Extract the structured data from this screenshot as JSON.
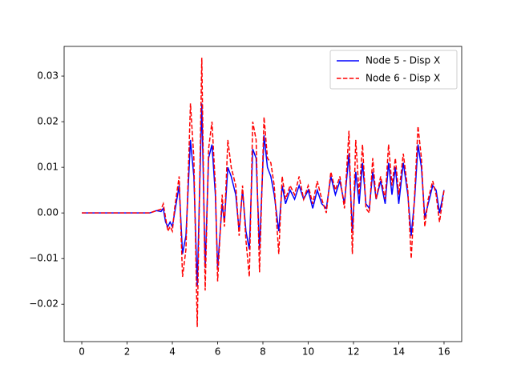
{
  "chart_data": {
    "type": "line",
    "x": [
      0,
      3.0,
      3.3,
      3.5,
      3.6,
      3.7,
      3.8,
      3.9,
      4.0,
      4.1,
      4.3,
      4.45,
      4.6,
      4.8,
      4.95,
      5.1,
      5.3,
      5.45,
      5.6,
      5.75,
      5.9,
      6.0,
      6.2,
      6.3,
      6.45,
      6.6,
      6.8,
      6.95,
      7.1,
      7.25,
      7.4,
      7.55,
      7.7,
      7.85,
      8.05,
      8.2,
      8.35,
      8.5,
      8.7,
      8.85,
      9.0,
      9.2,
      9.4,
      9.6,
      9.8,
      10.0,
      10.2,
      10.4,
      10.6,
      10.8,
      11.0,
      11.2,
      11.4,
      11.6,
      11.8,
      11.95,
      12.1,
      12.25,
      12.4,
      12.55,
      12.7,
      12.85,
      13.0,
      13.2,
      13.4,
      13.55,
      13.7,
      13.85,
      14.0,
      14.2,
      14.4,
      14.55,
      14.7,
      14.85,
      15.0,
      15.15,
      15.3,
      15.5,
      15.65,
      15.8,
      16.0
    ],
    "series": [
      {
        "name": "Node 5 - Disp X",
        "color": "#0000ff",
        "dash": "solid",
        "values": [
          0,
          0,
          0.0005,
          0.0003,
          0.001,
          -0.002,
          -0.003,
          -0.002,
          -0.003,
          0.0,
          0.006,
          -0.009,
          -0.005,
          0.016,
          0.008,
          -0.016,
          0.024,
          -0.012,
          0.012,
          0.015,
          0.004,
          -0.012,
          0.002,
          -0.002,
          0.01,
          0.008,
          0.004,
          -0.004,
          0.005,
          -0.004,
          -0.008,
          0.014,
          0.012,
          -0.008,
          0.017,
          0.01,
          0.008,
          0.004,
          -0.004,
          0.006,
          0.002,
          0.005,
          0.003,
          0.006,
          0.003,
          0.005,
          0.001,
          0.005,
          0.002,
          0.001,
          0.008,
          0.004,
          0.007,
          0.002,
          0.013,
          -0.004,
          0.009,
          0.002,
          0.011,
          0.002,
          0.001,
          0.009,
          0.003,
          0.007,
          0.002,
          0.011,
          0.004,
          0.01,
          0.002,
          0.011,
          0.004,
          -0.005,
          0.003,
          0.015,
          0.01,
          -0.001,
          0.002,
          0.006,
          0.005,
          0.0,
          0.005
        ]
      },
      {
        "name": "Node 6 - Disp X",
        "color": "#ff0000",
        "dash": "dashed",
        "values": [
          0,
          0,
          0.0005,
          0.0008,
          0.002,
          -0.001,
          -0.004,
          -0.003,
          -0.004,
          0.001,
          0.008,
          -0.014,
          -0.008,
          0.024,
          0.012,
          -0.025,
          0.034,
          -0.017,
          0.014,
          0.02,
          0.006,
          -0.015,
          0.004,
          -0.003,
          0.016,
          0.01,
          0.006,
          -0.005,
          0.006,
          -0.006,
          -0.014,
          0.02,
          0.016,
          -0.013,
          0.021,
          0.012,
          0.011,
          0.006,
          -0.009,
          0.008,
          0.003,
          0.006,
          0.004,
          0.008,
          0.003,
          0.006,
          0.002,
          0.007,
          0.003,
          0.0,
          0.009,
          0.005,
          0.008,
          0.001,
          0.018,
          -0.009,
          0.016,
          0.004,
          0.015,
          0.001,
          0.0,
          0.012,
          0.003,
          0.008,
          0.003,
          0.015,
          0.006,
          0.012,
          0.004,
          0.013,
          0.005,
          -0.01,
          0.004,
          0.019,
          0.012,
          -0.003,
          0.003,
          0.007,
          0.004,
          -0.002,
          0.005
        ]
      }
    ],
    "xlim": [
      -0.78,
      16.78
    ],
    "xticks": [
      0,
      2,
      4,
      6,
      8,
      10,
      12,
      14,
      16
    ],
    "ylim": [
      -0.0282,
      0.0365
    ],
    "yticks": [
      {
        "value": -0.02,
        "label": "−0.02"
      },
      {
        "value": -0.01,
        "label": "−0.01"
      },
      {
        "value": 0,
        "label": "0.00"
      },
      0.01,
      0.02,
      0.03
    ],
    "legend": "upper right"
  }
}
